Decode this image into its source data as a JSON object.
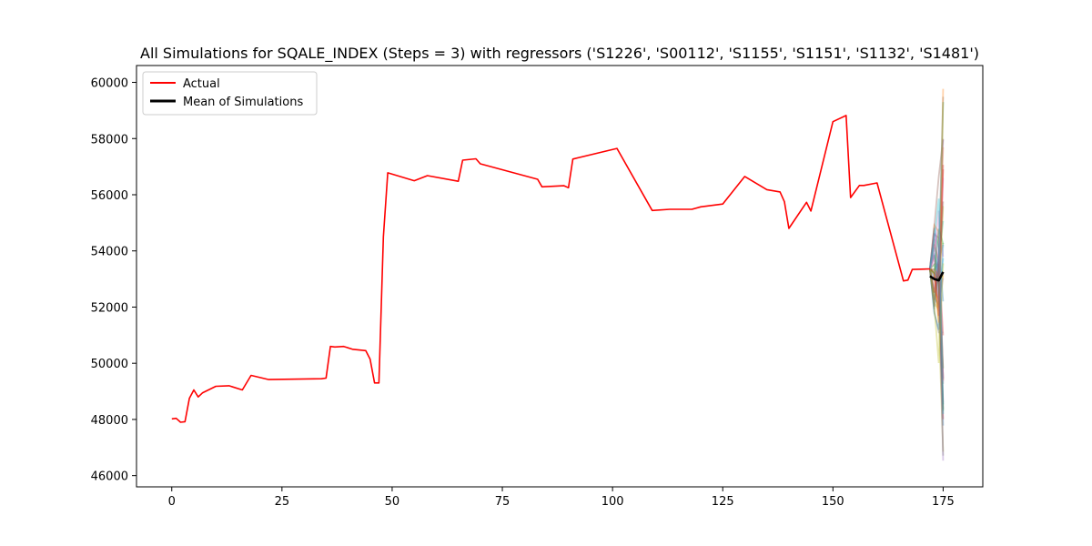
{
  "chart_data": {
    "type": "line",
    "title": "All Simulations for SQALE_INDEX (Steps = 3) with regressors ('S1226', 'S00112', 'S1155', 'S1151', 'S1132', 'S1481')",
    "xlabel": "",
    "ylabel": "",
    "xlim": [
      -8,
      184
    ],
    "ylim": [
      45600,
      60600
    ],
    "x_ticks": [
      0,
      25,
      50,
      75,
      100,
      125,
      150,
      175
    ],
    "y_ticks": [
      46000,
      48000,
      50000,
      52000,
      54000,
      56000,
      58000,
      60000
    ],
    "legend": {
      "placement": "upper-left",
      "entries": [
        {
          "label": "Actual",
          "color": "#ff0000"
        },
        {
          "label": "Mean of Simulations",
          "color": "#000000"
        }
      ]
    },
    "actual": {
      "name": "Actual",
      "color": "#ff0000",
      "x": [
        0,
        1,
        2,
        3,
        4,
        5,
        6,
        7,
        10,
        13,
        16,
        18,
        22,
        34,
        35,
        36,
        37,
        39,
        41,
        44,
        45,
        46,
        47,
        48,
        49,
        55,
        58,
        65,
        66,
        69,
        70,
        83,
        84,
        89,
        90,
        91,
        101,
        109,
        113,
        118,
        120,
        125,
        130,
        135,
        138,
        139,
        140,
        144,
        145,
        150,
        153,
        154,
        156,
        157,
        160,
        166,
        167,
        168,
        172
      ],
      "y": [
        48020,
        48040,
        47900,
        47920,
        48750,
        49050,
        48800,
        48950,
        49180,
        49200,
        49050,
        49570,
        49420,
        49450,
        49470,
        50600,
        50580,
        50600,
        50500,
        50450,
        50150,
        49300,
        49300,
        54500,
        56780,
        56500,
        56680,
        56480,
        57230,
        57280,
        57100,
        56550,
        56280,
        56320,
        56250,
        57270,
        57650,
        55440,
        55480,
        55480,
        55570,
        55670,
        56650,
        56180,
        56100,
        55750,
        54800,
        55730,
        55420,
        58600,
        58820,
        55900,
        56330,
        56330,
        56420,
        52930,
        52960,
        53340,
        53360
      ]
    },
    "mean": {
      "name": "Mean of Simulations",
      "color": "#000000",
      "x": [
        172,
        173,
        174,
        175
      ],
      "y": [
        53100,
        53000,
        52950,
        53250
      ]
    },
    "simulation_colors": [
      "#1f77b4",
      "#ff7f0e",
      "#2ca02c",
      "#d62728",
      "#9467bd",
      "#8c564b",
      "#e377c2",
      "#7f7f7f",
      "#bcbd22",
      "#17becf"
    ]
  }
}
